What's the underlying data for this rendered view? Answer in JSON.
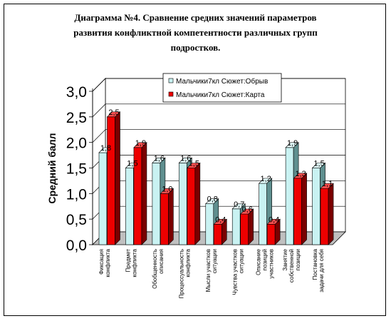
{
  "chart_data": {
    "type": "bar",
    "title_lines": [
      "Диаграмма №4.    Сравнение средних значений параметров",
      "развития конфликтной компетентности различных групп",
      "подростков."
    ],
    "ylabel": "Средний балл",
    "ylim": [
      0,
      3.0
    ],
    "yticks": [
      "0,0",
      "0,5",
      "1,0",
      "1,5",
      "2,0",
      "2,5",
      "3,0"
    ],
    "legend_position": "top-right",
    "categories": [
      [
        "Фиксация",
        "конфликта"
      ],
      [
        "Предмет",
        "конфликта"
      ],
      [
        "Обобщенность",
        "описания"
      ],
      [
        "Процессуальность",
        "конфликта"
      ],
      [
        "Мысли участков",
        "ситуации"
      ],
      [
        "Чувства участков",
        "ситуации"
      ],
      [
        "Описание",
        "позиций",
        "участников"
      ],
      [
        "Занятие",
        "собственной",
        "позиции"
      ],
      [
        "Постановка",
        "задачи для себя"
      ]
    ],
    "series": [
      {
        "name": "Мальчики7кл Сюжет:Обрыв",
        "color": "#c9f2f2",
        "side": "#5f8f8f",
        "top": "#e6ffff",
        "values": [
          1.8,
          1.5,
          1.6,
          1.6,
          0.8,
          0.7,
          1.2,
          1.9,
          1.5
        ],
        "labels": [
          "1,8",
          "1,5",
          "1,6",
          "1,6",
          "0,8",
          "0,7",
          "1,2",
          "1,9",
          "1,5"
        ]
      },
      {
        "name": "Мальчики7кл Сюжет:Карта",
        "color": "#ee0000",
        "side": "#7a0000",
        "top": "#ff5050",
        "values": [
          2.5,
          1.9,
          1.0,
          1.5,
          0.4,
          0.6,
          0.4,
          1.3,
          1.1
        ],
        "labels": [
          "2,5",
          "1,9",
          "1,0",
          "1,5",
          "0,4",
          "0,6",
          "0,4",
          "1,3",
          "1,1"
        ]
      }
    ]
  }
}
